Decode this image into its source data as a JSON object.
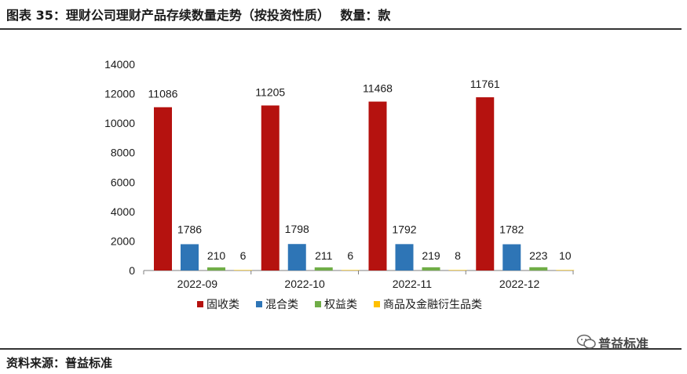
{
  "header": {
    "title": "图表 35：理财公司理财产品存续数量走势（按投资性质）　 数量：款"
  },
  "footer": {
    "source": "资料来源：普益标准",
    "watermark": "普益标准"
  },
  "chart_data": {
    "type": "bar",
    "title": "",
    "xlabel": "",
    "ylabel": "",
    "ylim": [
      0,
      14000
    ],
    "yticks": [
      0,
      2000,
      4000,
      6000,
      8000,
      10000,
      12000,
      14000
    ],
    "grid": false,
    "legend_position": "bottom",
    "categories": [
      "2022-09",
      "2022-10",
      "2022-11",
      "2022-12"
    ],
    "series": [
      {
        "name": "固收类",
        "color": "#B5120F",
        "values": [
          11086,
          11205,
          11468,
          11761
        ]
      },
      {
        "name": "混合类",
        "color": "#2E75B6",
        "values": [
          1786,
          1798,
          1792,
          1782
        ]
      },
      {
        "name": "权益类",
        "color": "#70AD47",
        "values": [
          210,
          211,
          219,
          223
        ]
      },
      {
        "name": "商品及金融衍生品类",
        "color": "#FFC000",
        "values": [
          6,
          6,
          8,
          10
        ]
      }
    ]
  }
}
